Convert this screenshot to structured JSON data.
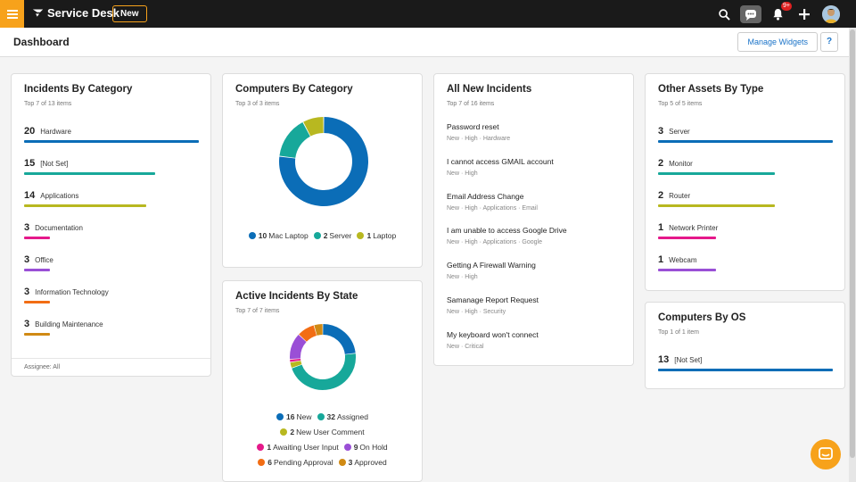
{
  "topbar": {
    "app_title": "Service Desk",
    "new_label": "New",
    "notification_count": "9+"
  },
  "header": {
    "title": "Dashboard",
    "manage_label": "Manage Widgets",
    "help_label": "?"
  },
  "widgets": {
    "incidents_by_category": {
      "title": "Incidents By Category",
      "subtitle": "Top 7 of 13 items",
      "footer": "Assignee: All",
      "items": [
        {
          "count": "20",
          "label": "Hardware",
          "value": 20,
          "color": "#0b6db7"
        },
        {
          "count": "15",
          "label": "[Not Set]",
          "value": 15,
          "color": "#17a89a"
        },
        {
          "count": "14",
          "label": "Applications",
          "value": 14,
          "color": "#b8b820"
        },
        {
          "count": "3",
          "label": "Documentation",
          "value": 3,
          "color": "#e5198a"
        },
        {
          "count": "3",
          "label": "Office",
          "value": 3,
          "color": "#9a4fd6"
        },
        {
          "count": "3",
          "label": "Information Technology",
          "value": 3,
          "color": "#f26d14"
        },
        {
          "count": "3",
          "label": "Building Maintenance",
          "value": 3,
          "color": "#d08a14"
        }
      ]
    },
    "computers_by_category": {
      "title": "Computers By Category",
      "subtitle": "Top 3 of 3 items",
      "slices": [
        {
          "count": "10",
          "label": "Mac Laptop",
          "value": 10,
          "color": "#0b6db7"
        },
        {
          "count": "2",
          "label": "Server",
          "value": 2,
          "color": "#17a89a"
        },
        {
          "count": "1",
          "label": "Laptop",
          "value": 1,
          "color": "#b8b820"
        }
      ]
    },
    "active_incidents_by_state": {
      "title": "Active Incidents By State",
      "subtitle": "Top 7 of 7 items",
      "slices": [
        {
          "count": "16",
          "label": "New",
          "value": 16,
          "color": "#0b6db7"
        },
        {
          "count": "32",
          "label": "Assigned",
          "value": 32,
          "color": "#17a89a"
        },
        {
          "count": "2",
          "label": "New User Comment",
          "value": 2,
          "color": "#b8b820"
        },
        {
          "count": "1",
          "label": "Awaiting User Input",
          "value": 1,
          "color": "#e5198a"
        },
        {
          "count": "9",
          "label": "On Hold",
          "value": 9,
          "color": "#9a4fd6"
        },
        {
          "count": "6",
          "label": "Pending Approval",
          "value": 6,
          "color": "#f26d14"
        },
        {
          "count": "3",
          "label": "Approved",
          "value": 3,
          "color": "#d08a14"
        }
      ]
    },
    "all_new_incidents": {
      "title": "All New Incidents",
      "subtitle": "Top 7 of 16 items",
      "items": [
        {
          "title": "Password reset",
          "meta": "New  ·  High  ·  Hardware"
        },
        {
          "title": "I cannot access GMAIL account",
          "meta": "New  ·  High"
        },
        {
          "title": "Email Address Change",
          "meta": "New  ·  High  ·  Applications  ·  Email"
        },
        {
          "title": "I am unable to access Google Drive",
          "meta": "New  ·  High  ·  Applications  ·  Google"
        },
        {
          "title": "Getting A Firewall Warning",
          "meta": "New  ·  High"
        },
        {
          "title": "Samanage Report Request",
          "meta": "New  ·  High  ·  Security"
        },
        {
          "title": "My keyboard won't connect",
          "meta": "New  ·  Critical"
        }
      ]
    },
    "other_assets_by_type": {
      "title": "Other Assets By Type",
      "subtitle": "Top 5 of 5 items",
      "items": [
        {
          "count": "3",
          "label": "Server",
          "value": 3,
          "color": "#0b6db7"
        },
        {
          "count": "2",
          "label": "Monitor",
          "value": 2,
          "color": "#17a89a"
        },
        {
          "count": "2",
          "label": "Router",
          "value": 2,
          "color": "#b8b820"
        },
        {
          "count": "1",
          "label": "Network Printer",
          "value": 1,
          "color": "#e5198a"
        },
        {
          "count": "1",
          "label": "Webcam",
          "value": 1,
          "color": "#9a4fd6"
        }
      ]
    },
    "computers_by_os": {
      "title": "Computers By OS",
      "subtitle": "Top 1 of 1 item",
      "items": [
        {
          "count": "13",
          "label": "[Not Set]",
          "value": 13,
          "color": "#0b6db7"
        }
      ]
    }
  },
  "icons": {
    "menu": "hamburger-icon",
    "search": "search-icon",
    "chat": "chat-icon",
    "bell": "bell-icon",
    "add": "plus-icon",
    "support": "chat-bubble-icon"
  }
}
